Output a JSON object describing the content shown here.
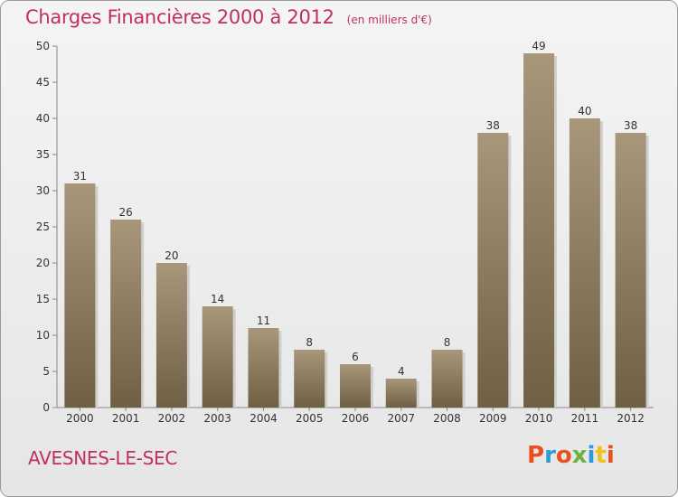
{
  "header": {
    "title": "Charges Financières 2000 à 2012",
    "unit": "(en milliers d'€)"
  },
  "footer": {
    "place": "AVESNES-LE-SEC",
    "brand": "Proxiti",
    "brand_colors": [
      "#e8511f",
      "#2f9ad6",
      "#e8511f",
      "#6cb33f",
      "#2f9ad6",
      "#f2c21b",
      "#e8511f"
    ]
  },
  "chart_data": {
    "type": "bar",
    "categories": [
      "2000",
      "2001",
      "2002",
      "2003",
      "2004",
      "2005",
      "2006",
      "2007",
      "2008",
      "2009",
      "2010",
      "2011",
      "2012"
    ],
    "values": [
      31,
      26,
      20,
      14,
      11,
      8,
      6,
      4,
      8,
      38,
      49,
      40,
      38
    ],
    "title": "Charges Financières 2000 à 2012",
    "subtitle": "(en milliers d'€)",
    "ylim": [
      0,
      50
    ],
    "yticks": [
      0,
      5,
      10,
      15,
      20,
      25,
      30,
      35,
      40,
      45,
      50
    ],
    "grid": false,
    "bar_color_top": "#a8977a",
    "bar_color_bottom": "#6f5f43"
  }
}
